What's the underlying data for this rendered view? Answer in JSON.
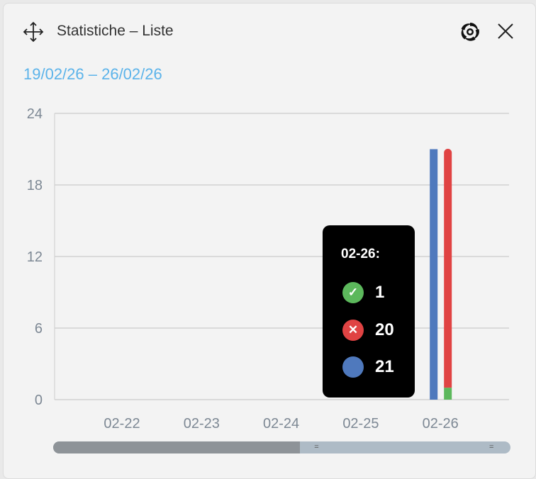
{
  "header": {
    "title": "Statistiche – Liste",
    "move_icon": "move-arrows-icon",
    "spiral_icon": "spiral-icon",
    "close_icon": "close-x-icon"
  },
  "date_range": "19/02/26 – 26/02/26",
  "colors": {
    "success": "#5cb85c",
    "failed": "#e04343",
    "total": "#4f79bd",
    "range_text": "#5bb3ea"
  },
  "chart_data": {
    "type": "bar",
    "categories": [
      "02-22",
      "02-23",
      "02-24",
      "02-25",
      "02-26"
    ],
    "ylim": [
      0,
      24
    ],
    "yticks": [
      "0",
      "6",
      "12",
      "18",
      "24"
    ],
    "grid": true,
    "series": [
      {
        "key": "total",
        "values": [
          0,
          0,
          0,
          0,
          21
        ],
        "color": "#4f79bd"
      },
      {
        "key": "success",
        "stack": "s",
        "values": [
          0,
          0,
          0,
          0,
          1
        ],
        "color": "#5cb85c"
      },
      {
        "key": "failed",
        "stack": "s",
        "values": [
          0,
          0,
          0,
          0,
          20
        ],
        "color": "#e04343"
      }
    ]
  },
  "tooltip": {
    "date": "02-26:",
    "success": "1",
    "failed": "20",
    "total": "21"
  },
  "scrollbar": {
    "visible_fraction": 0.46,
    "position": "end"
  }
}
